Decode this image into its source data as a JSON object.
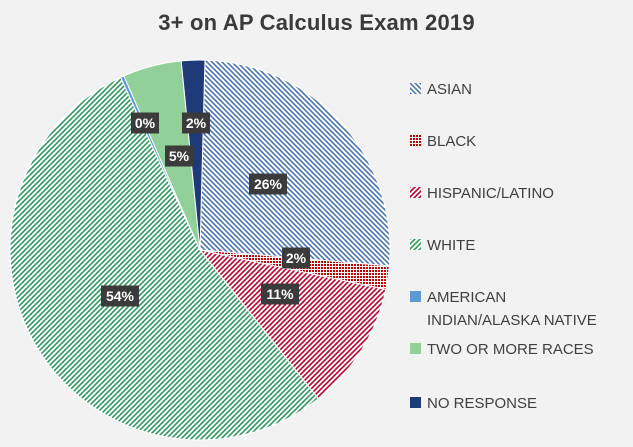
{
  "chart_data": {
    "type": "pie",
    "title": "3+ on AP Calculus Exam 2019",
    "legend_position": "right",
    "slices": [
      {
        "name": "ASIAN",
        "value": 26,
        "label": "26%",
        "color": "#4a74b8",
        "pattern": "diag-down"
      },
      {
        "name": "BLACK",
        "value": 2,
        "label": "2%",
        "color": "#c00000",
        "pattern": "dots"
      },
      {
        "name": "HISPANIC/LATINO",
        "value": 11,
        "label": "11%",
        "color": "#c0002a",
        "pattern": "diag-up"
      },
      {
        "name": "WHITE",
        "value": 54,
        "label": "54%",
        "color": "#2e9a5e",
        "pattern": "diag-up"
      },
      {
        "name": "AMERICAN INDIAN/ALASKA NATIVE",
        "value": 0.3,
        "label": "0%",
        "color": "#5b9bd5",
        "pattern": "solid"
      },
      {
        "name": "TWO OR MORE RACES",
        "value": 5,
        "label": "5%",
        "color": "#92d09a",
        "pattern": "solid"
      },
      {
        "name": "NO RESPONSE",
        "value": 2,
        "label": "2%",
        "color": "#1f3a78",
        "pattern": "solid"
      }
    ]
  }
}
